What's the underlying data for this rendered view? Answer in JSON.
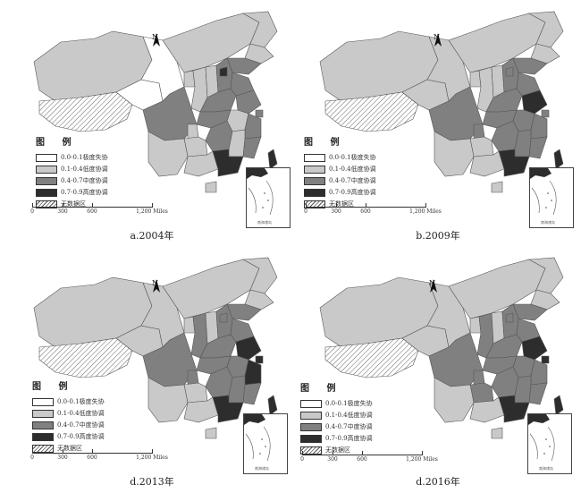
{
  "legend": {
    "title": "图 例",
    "items": [
      {
        "label": "0.0-0.1极度失协",
        "fill": "#ffffff"
      },
      {
        "label": "0.1-0.4低度协调",
        "fill": "#c9c9c9"
      },
      {
        "label": "0.4-0.7中度协调",
        "fill": "#808080"
      },
      {
        "label": "0.7-0.9高度协调",
        "fill": "#2d2d2d"
      },
      {
        "label": "无数据区",
        "fill": "hatch"
      }
    ]
  },
  "scale": {
    "labels": [
      "0",
      "300",
      "600",
      "1,200 Miles"
    ]
  },
  "north_label": "N",
  "inset_label": "南海诸岛",
  "panels": [
    {
      "caption": "a.2004年",
      "year": 2004
    },
    {
      "caption": "b.2009年",
      "year": 2009
    },
    {
      "caption": "d.2013年",
      "year": 2013
    },
    {
      "caption": "d.2016年",
      "year": 2016
    }
  ],
  "colors": {
    "white": "#ffffff",
    "low": "#c9c9c9",
    "mid": "#808080",
    "high": "#2d2d2d",
    "border": "#555555"
  }
}
